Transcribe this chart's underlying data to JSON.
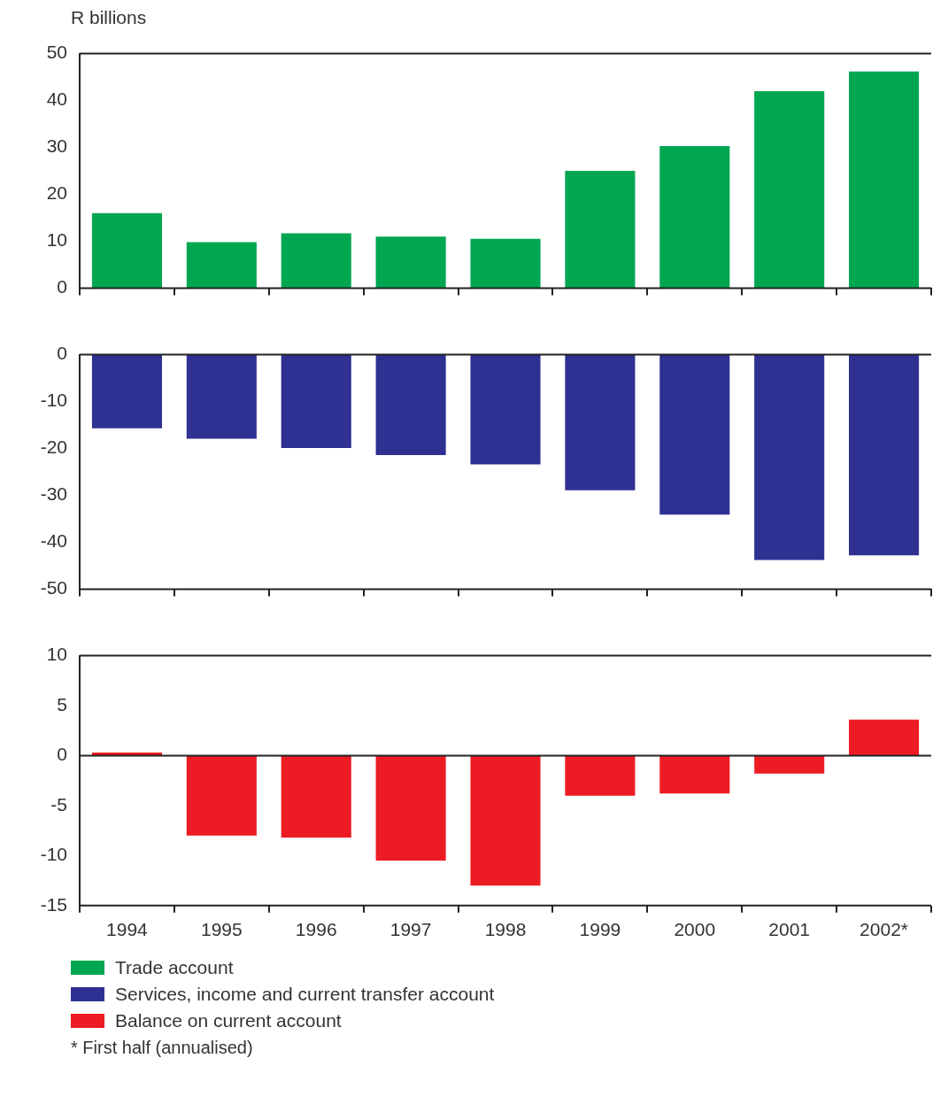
{
  "chart_data": [
    {
      "type": "bar",
      "ylabel": "R billions",
      "categories": [
        null,
        null,
        null,
        null,
        null,
        null,
        null,
        null,
        null
      ],
      "series": [
        {
          "name": "Trade account",
          "color": "#00a650",
          "values": [
            16,
            9.8,
            11.7,
            11,
            10.5,
            25,
            30.3,
            42,
            46.2
          ]
        }
      ],
      "ylim": [
        0,
        50
      ],
      "yticks": [
        0,
        10,
        20,
        30,
        40,
        50
      ],
      "grid": false,
      "legend": "bottom",
      "tick_labels": "y"
    },
    {
      "type": "bar",
      "categories": [
        null,
        null,
        null,
        null,
        null,
        null,
        null,
        null,
        null
      ],
      "series": [
        {
          "name": "Services, income and current transfer account",
          "color": "#2e3192",
          "values": [
            -15.7,
            -17.9,
            -19.9,
            -21.4,
            -23.4,
            -28.9,
            -34.1,
            -43.8,
            -42.8
          ]
        }
      ],
      "ylim": [
        -50,
        0
      ],
      "yticks": [
        -50,
        -40,
        -30,
        -20,
        -10,
        0
      ],
      "grid": false,
      "legend": "bottom",
      "tick_labels": "y"
    },
    {
      "type": "bar",
      "categories": [
        "1994",
        "1995",
        "1996",
        "1997",
        "1998",
        "1999",
        "2000",
        "2001",
        "2002*"
      ],
      "series": [
        {
          "name": "Balance on current account",
          "color": "#ed1c24",
          "values": [
            0.3,
            -8,
            -8.2,
            -10.5,
            -13,
            -4,
            -3.8,
            -1.8,
            3.6
          ]
        }
      ],
      "ylim": [
        -15,
        10
      ],
      "yticks": [
        -15,
        -10,
        -5,
        0,
        5,
        10
      ],
      "grid": false,
      "legend": "bottom",
      "ref_lines": [
        {
          "axis": "y",
          "value": 0,
          "color": "#222222"
        }
      ],
      "annotations": [
        "* First half (annualised)"
      ]
    }
  ]
}
